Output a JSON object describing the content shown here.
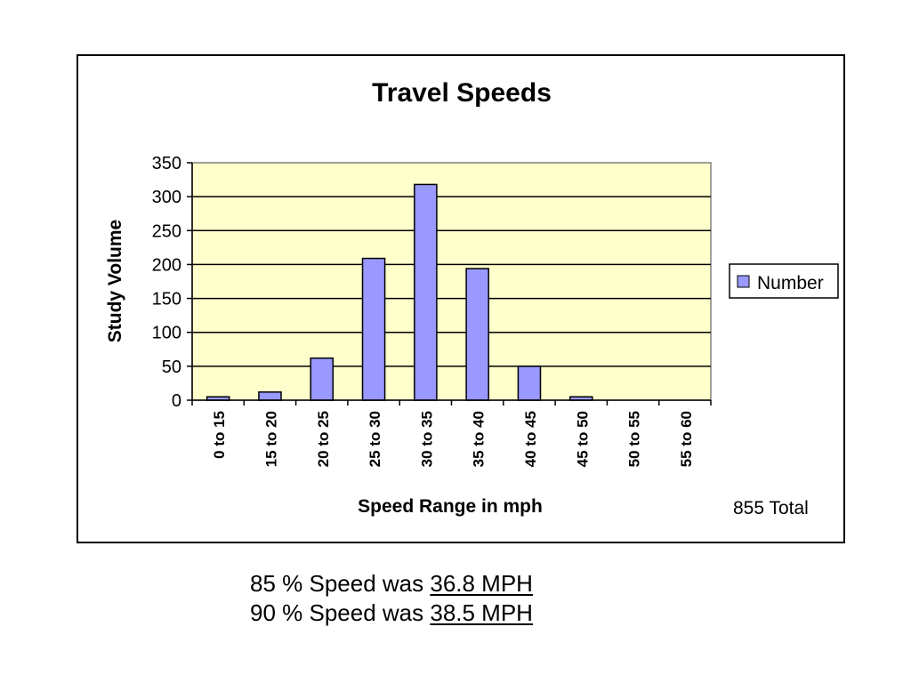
{
  "chart_data": {
    "type": "bar",
    "title": "Travel Speeds",
    "xlabel": "Speed Range in mph",
    "ylabel": "Study Volume",
    "categories": [
      "0 to 15",
      "15 to 20",
      "20 to 25",
      "25 to 30",
      "30 to 35",
      "35 to 40",
      "40 to 45",
      "45 to 50",
      "50 to 55",
      "55 to 60"
    ],
    "series": [
      {
        "name": "Number",
        "values": [
          5,
          12,
          62,
          209,
          318,
          194,
          50,
          5,
          0,
          0
        ]
      }
    ],
    "ylim": [
      0,
      350
    ],
    "yticks": [
      0,
      50,
      100,
      150,
      200,
      250,
      300,
      350
    ],
    "grid": true,
    "legend_position": "right",
    "total_note": "855 Total",
    "colors": {
      "bar_fill": "#9999ff",
      "plot_background": "#ffffcc",
      "gridline": "#000000"
    }
  },
  "footer": {
    "line1_prefix": "85 % Speed was ",
    "line1_value": "36.8 MPH",
    "line2_prefix": "90 % Speed was ",
    "line2_value": "38.5 MPH"
  }
}
